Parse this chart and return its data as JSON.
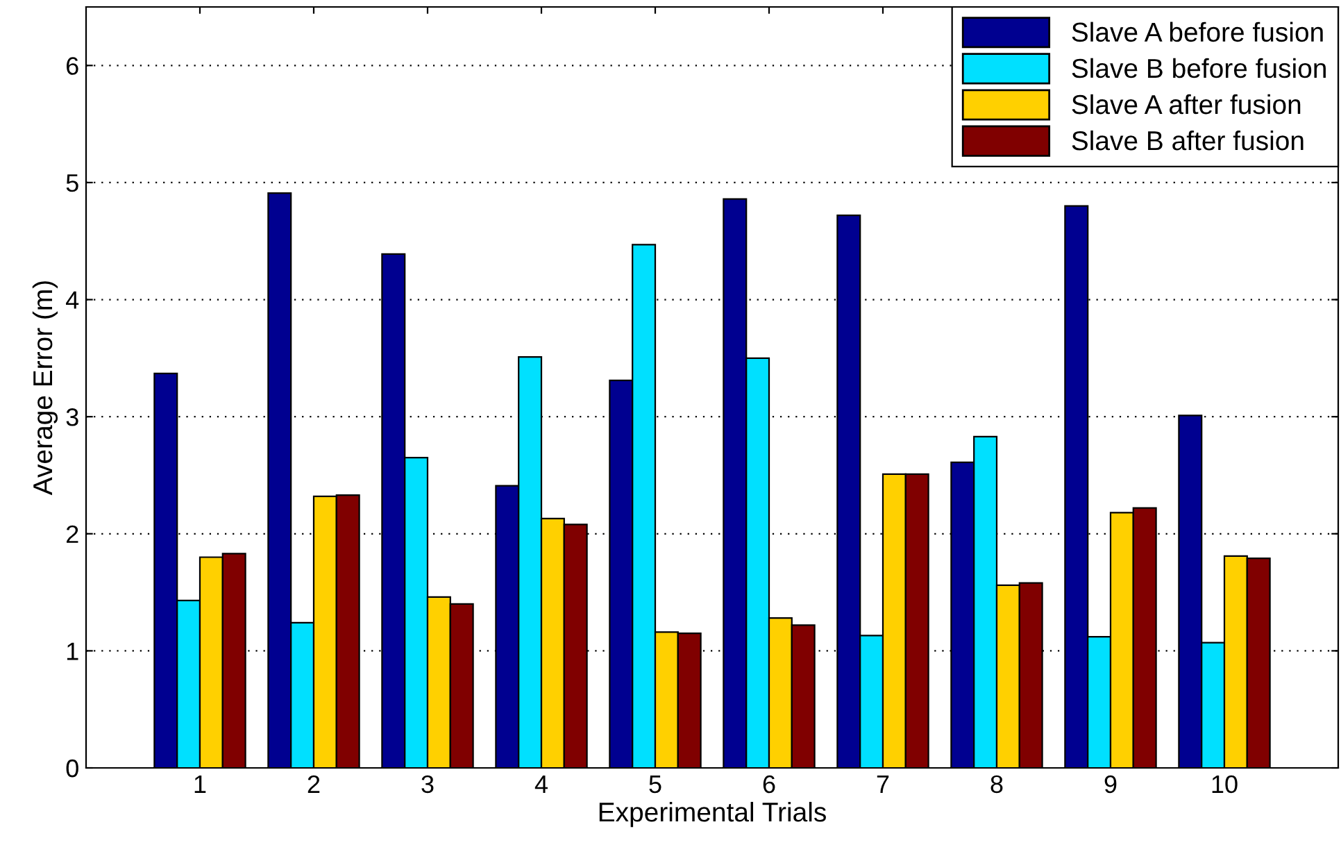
{
  "chart_data": {
    "type": "bar",
    "xlabel": "Experimental Trials",
    "ylabel": "Average Error (m)",
    "categories": [
      "1",
      "2",
      "3",
      "4",
      "5",
      "6",
      "7",
      "8",
      "9",
      "10"
    ],
    "series": [
      {
        "name": "Slave A before fusion",
        "color": "#000090",
        "values": [
          3.37,
          4.91,
          4.39,
          2.41,
          3.31,
          4.86,
          4.72,
          2.61,
          4.8,
          3.01
        ]
      },
      {
        "name": "Slave B before fusion",
        "color": "#00e0ff",
        "values": [
          1.43,
          1.24,
          2.65,
          3.51,
          4.47,
          3.5,
          1.13,
          2.83,
          1.12,
          1.07
        ]
      },
      {
        "name": "Slave A after fusion",
        "color": "#ffd000",
        "values": [
          1.8,
          2.32,
          1.46,
          2.13,
          1.16,
          1.28,
          2.51,
          1.56,
          2.18,
          1.81
        ]
      },
      {
        "name": "Slave B after fusion",
        "color": "#800000",
        "values": [
          1.83,
          2.33,
          1.4,
          2.08,
          1.15,
          1.22,
          2.51,
          1.58,
          2.22,
          1.79
        ]
      }
    ],
    "ylim": [
      0,
      6.5
    ],
    "yticks": [
      0,
      1,
      2,
      3,
      4,
      5,
      6
    ],
    "grid": "y",
    "legend": "top right"
  }
}
